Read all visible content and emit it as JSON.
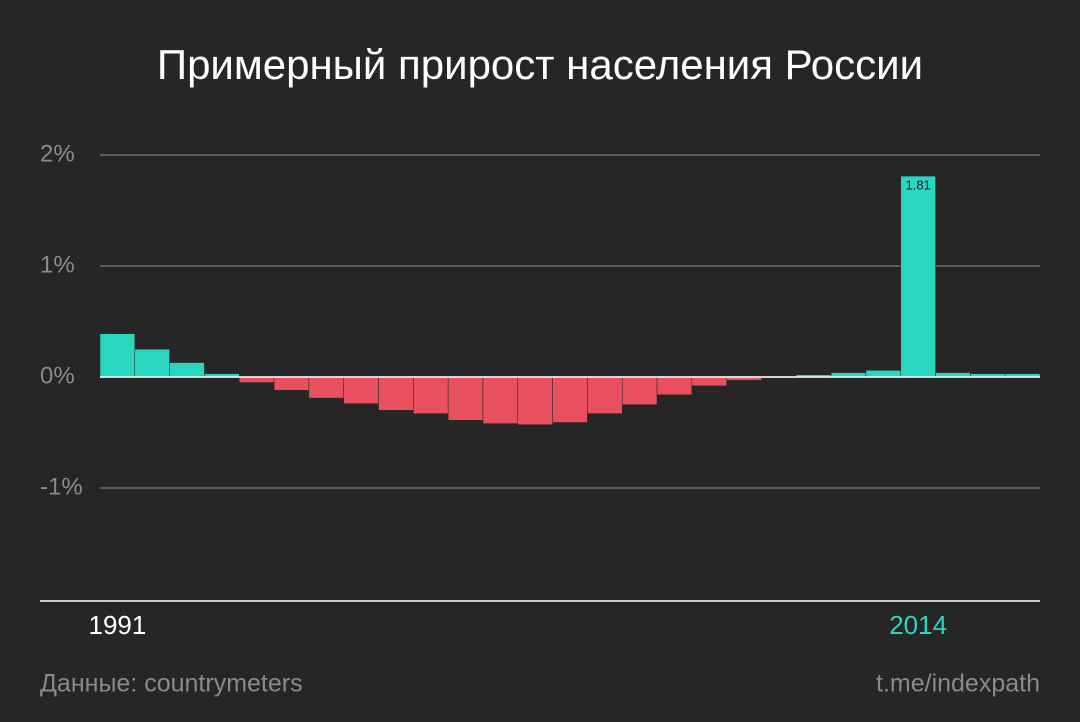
{
  "chart_data": {
    "type": "bar",
    "title": "Примерный прирост населения России",
    "categories": [
      "1991",
      null,
      null,
      null,
      null,
      null,
      null,
      null,
      null,
      null,
      null,
      null,
      null,
      null,
      null,
      null,
      null,
      null,
      null,
      null,
      null,
      null,
      null,
      "2014",
      null,
      null,
      null
    ],
    "values": [
      0.39,
      0.25,
      0.13,
      0.03,
      -0.05,
      -0.12,
      -0.19,
      -0.24,
      -0.3,
      -0.33,
      -0.39,
      -0.42,
      -0.43,
      -0.41,
      -0.33,
      -0.25,
      -0.16,
      -0.08,
      -0.03,
      -0.01,
      0.02,
      0.04,
      0.06,
      1.81,
      0.04,
      0.03,
      0.03
    ],
    "value_labels": [
      null,
      null,
      null,
      null,
      null,
      null,
      null,
      null,
      null,
      null,
      null,
      null,
      null,
      null,
      null,
      null,
      null,
      null,
      null,
      null,
      null,
      null,
      null,
      "1.81",
      null,
      null,
      null
    ],
    "positive_color": "#2ad6c0",
    "negative_color": "#e8505f",
    "highlight_color": "#2ad6c0",
    "ylim": [
      -2,
      2
    ],
    "yticks": [
      {
        "value": -1,
        "label": "-1%"
      },
      {
        "value": 0,
        "label": "0%"
      },
      {
        "value": 1,
        "label": "1%"
      },
      {
        "value": 2,
        "label": "2%"
      }
    ],
    "grid": true,
    "source": "Данные: countrymeters",
    "credit": "t.me/indexpath"
  }
}
